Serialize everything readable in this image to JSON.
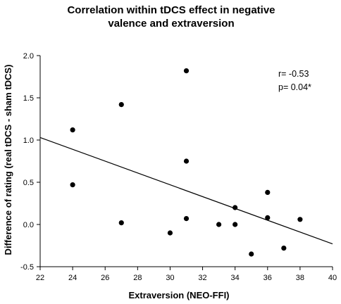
{
  "chart_data": {
    "type": "scatter",
    "title_lines": [
      "Correlation within tDCS effect in negative",
      "valence and extraversion"
    ],
    "xlabel": "Extraversion (NEO-FFI)",
    "ylabel": "Difference of rating (real tDCS - sham tDCS)",
    "xlim": [
      22,
      40
    ],
    "ylim": [
      -0.5,
      2.0
    ],
    "xticks": [
      22,
      24,
      26,
      28,
      30,
      32,
      34,
      36,
      38,
      40
    ],
    "yticks": [
      -0.5,
      0.0,
      0.5,
      1.0,
      1.5,
      2.0
    ],
    "ytick_labels": [
      "-0.5",
      "0.0",
      "0.5",
      "1.0",
      "1.5",
      "2.0"
    ],
    "points": [
      {
        "x": 24,
        "y": 1.12
      },
      {
        "x": 24,
        "y": 0.47
      },
      {
        "x": 27,
        "y": 1.42
      },
      {
        "x": 27,
        "y": 0.02
      },
      {
        "x": 30,
        "y": -0.1
      },
      {
        "x": 31,
        "y": 1.82
      },
      {
        "x": 31,
        "y": 0.75
      },
      {
        "x": 31,
        "y": 0.07
      },
      {
        "x": 33,
        "y": 0.0
      },
      {
        "x": 34,
        "y": 0.2
      },
      {
        "x": 34,
        "y": 0.0
      },
      {
        "x": 35,
        "y": -0.35
      },
      {
        "x": 36,
        "y": 0.38
      },
      {
        "x": 36,
        "y": 0.08
      },
      {
        "x": 37,
        "y": -0.28
      },
      {
        "x": 38,
        "y": 0.06
      }
    ],
    "regression_line": {
      "x": [
        22,
        40
      ],
      "y": [
        1.03,
        -0.23
      ]
    },
    "annotations": [
      "r= -0.53",
      "p= 0.04*"
    ],
    "grid": false,
    "legend": "none",
    "colors": {
      "points": "#000000",
      "line": "#000000",
      "axes": "#000000"
    }
  }
}
